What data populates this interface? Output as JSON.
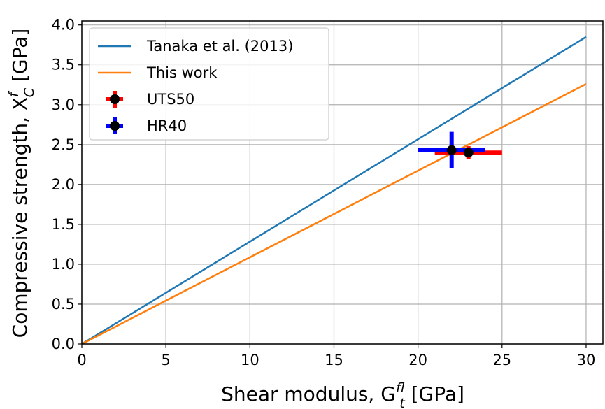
{
  "chart_data": {
    "type": "line",
    "xlabel": {
      "main": "Shear modulus, G",
      "sup": "f",
      "sub": "lt",
      "unit": " [GPa]"
    },
    "ylabel": {
      "main": "Compressive strength, X",
      "sup": "f",
      "sub": "C",
      "unit": " [GPa]"
    },
    "xlim": [
      0,
      31
    ],
    "ylim": [
      0,
      4.05
    ],
    "xticks": [
      0,
      5,
      10,
      15,
      20,
      25,
      30
    ],
    "yticks": [
      {
        "value": 0,
        "label": "0.0"
      },
      0.5,
      {
        "value": 1,
        "label": "1.0"
      },
      1.5,
      {
        "value": 2,
        "label": "2.0"
      },
      2.5,
      {
        "value": 3,
        "label": "3.0"
      },
      3.5,
      {
        "value": 4,
        "label": "4.0"
      }
    ],
    "grid": true,
    "legend": "upper left",
    "series": [
      {
        "name": "Tanaka et al. (2013)",
        "kind": "line",
        "color": "#1f77b4",
        "x": [
          0,
          30
        ],
        "values": [
          0,
          3.85
        ]
      },
      {
        "name": "This work",
        "kind": "line",
        "color": "#ff7f0e",
        "x": [
          0,
          30
        ],
        "values": [
          0,
          3.26
        ]
      },
      {
        "name": "UTS50",
        "kind": "errorbar",
        "color": "#ff0000",
        "x": [
          23
        ],
        "values": [
          2.4
        ],
        "xerr": [
          2
        ],
        "yerr": [
          0.08
        ]
      },
      {
        "name": "HR40",
        "kind": "errorbar",
        "color": "#0000ff",
        "x": [
          22
        ],
        "values": [
          2.43
        ],
        "xerr": [
          2
        ],
        "yerr": [
          0.23
        ]
      }
    ]
  }
}
